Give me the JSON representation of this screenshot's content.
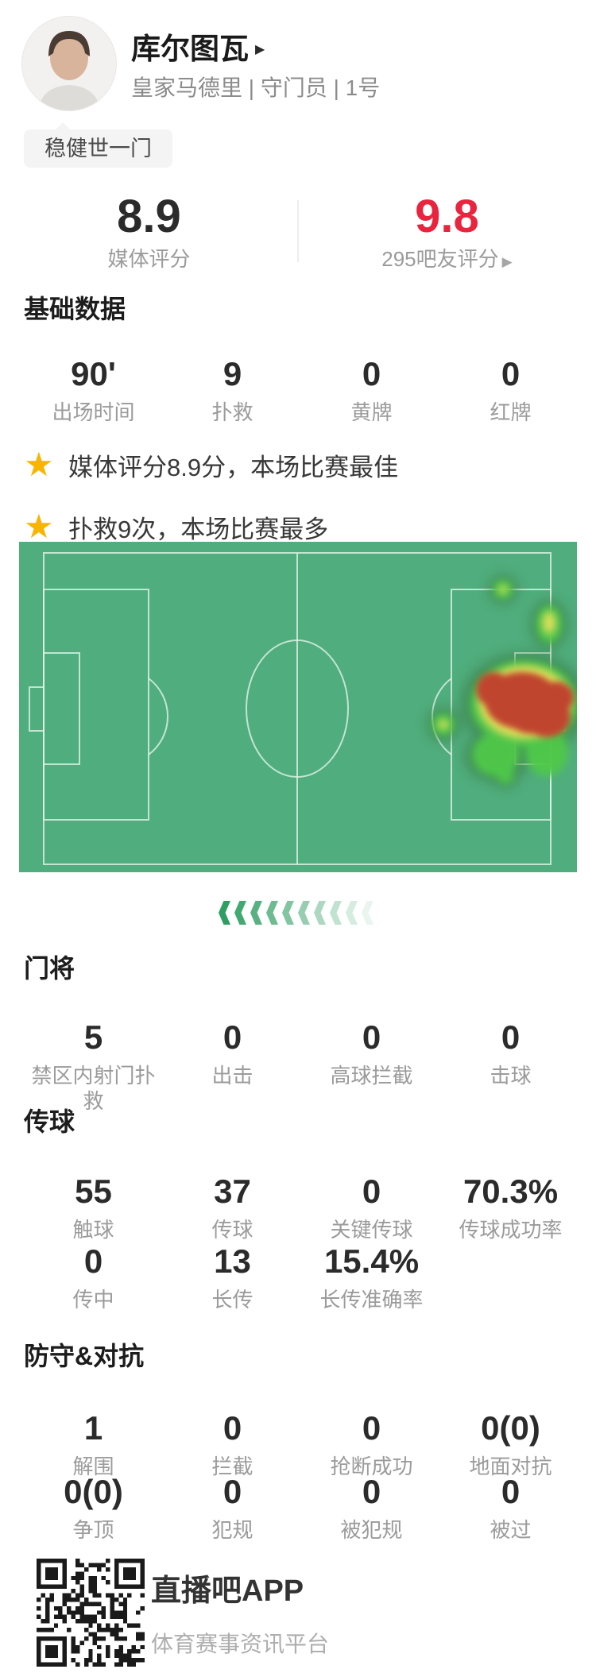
{
  "player": {
    "name": "库尔图瓦",
    "meta": "皇家马德里 | 守门员 | 1号",
    "tag": "稳健世一门"
  },
  "ratings": {
    "media": {
      "value": "8.9",
      "label": "媒体评分"
    },
    "fans": {
      "value": "9.8",
      "label": "295吧友评分"
    }
  },
  "highlights": [
    {
      "text": "媒体评分8.9分，本场比赛最佳"
    },
    {
      "text": "扑救9次，本场比赛最多"
    }
  ],
  "sections": {
    "basic": {
      "title": "基础数据",
      "rows": [
        [
          {
            "value": "90'",
            "label": "出场时间"
          },
          {
            "value": "9",
            "label": "扑救"
          },
          {
            "value": "0",
            "label": "黄牌"
          },
          {
            "value": "0",
            "label": "红牌"
          }
        ]
      ]
    },
    "goalkeeper": {
      "title": "门将",
      "rows": [
        [
          {
            "value": "5",
            "label": "禁区内射门扑救"
          },
          {
            "value": "0",
            "label": "出击"
          },
          {
            "value": "0",
            "label": "高球拦截"
          },
          {
            "value": "0",
            "label": "击球"
          }
        ]
      ]
    },
    "passing": {
      "title": "传球",
      "rows": [
        [
          {
            "value": "55",
            "label": "触球"
          },
          {
            "value": "37",
            "label": "传球"
          },
          {
            "value": "0",
            "label": "关键传球"
          },
          {
            "value": "70.3%",
            "label": "传球成功率"
          }
        ],
        [
          {
            "value": "0",
            "label": "传中"
          },
          {
            "value": "13",
            "label": "长传"
          },
          {
            "value": "15.4%",
            "label": "长传准确率"
          },
          {
            "value": "",
            "label": ""
          }
        ]
      ]
    },
    "defense": {
      "title": "防守&对抗",
      "rows": [
        [
          {
            "value": "1",
            "label": "解围"
          },
          {
            "value": "0",
            "label": "拦截"
          },
          {
            "value": "0",
            "label": "抢断成功"
          },
          {
            "value": "0(0)",
            "label": "地面对抗"
          }
        ],
        [
          {
            "value": "0(0)",
            "label": "争顶"
          },
          {
            "value": "0",
            "label": "犯规"
          },
          {
            "value": "0",
            "label": "被犯规"
          },
          {
            "value": "0",
            "label": "被过"
          }
        ]
      ]
    }
  },
  "heatmap": {
    "attack_direction": "left",
    "hot_zone": "right-penalty-area"
  },
  "footer": {
    "app_name": "直播吧APP",
    "app_desc": "体育赛事资讯平台"
  },
  "colors": {
    "accent_red": "#e8243f",
    "star_gold": "#f8b500",
    "pitch_green": "#50ad7d",
    "heat_red": "#c0452f",
    "heat_yellow": "#dfe05a",
    "heat_green": "#4fc948",
    "chevron_green": "#2f9e63"
  }
}
